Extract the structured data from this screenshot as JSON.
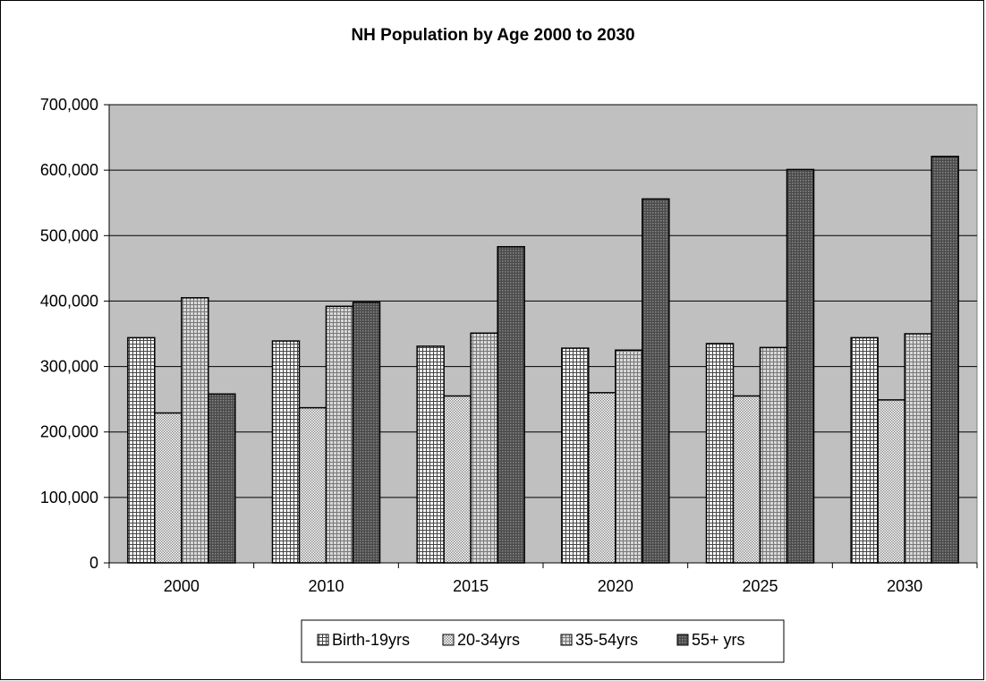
{
  "chart_data": {
    "type": "bar",
    "title": "NH Population by Age 2000 to 2030",
    "xlabel": "",
    "ylabel": "",
    "categories": [
      "2000",
      "2010",
      "2015",
      "2020",
      "2025",
      "2030"
    ],
    "series": [
      {
        "name": "Birth-19yrs",
        "values": [
          344000,
          339000,
          331000,
          328000,
          335000,
          344000
        ],
        "pattern": "fine-grid",
        "color": "#ffffff"
      },
      {
        "name": "20-34yrs",
        "values": [
          229000,
          237000,
          255000,
          260000,
          255000,
          249000
        ],
        "pattern": "dense-grid",
        "color": "#9a9a9a"
      },
      {
        "name": "35-54yrs",
        "values": [
          405000,
          392000,
          351000,
          325000,
          329000,
          350000
        ],
        "pattern": "light-grid",
        "color": "#cfcfcf"
      },
      {
        "name": "55+ yrs",
        "values": [
          258000,
          398000,
          483000,
          556000,
          601000,
          621000
        ],
        "pattern": "dark-grid",
        "color": "#5a5a5a"
      }
    ],
    "ylim": [
      0,
      700000
    ],
    "y_ticks": [
      0,
      100000,
      200000,
      300000,
      400000,
      500000,
      600000,
      700000
    ],
    "y_tick_labels": [
      "0",
      "100,000",
      "200,000",
      "300,000",
      "400,000",
      "500,000",
      "600,000",
      "700,000"
    ],
    "grid": true,
    "plot_background": "#c0c0c0",
    "legend_position": "bottom"
  }
}
